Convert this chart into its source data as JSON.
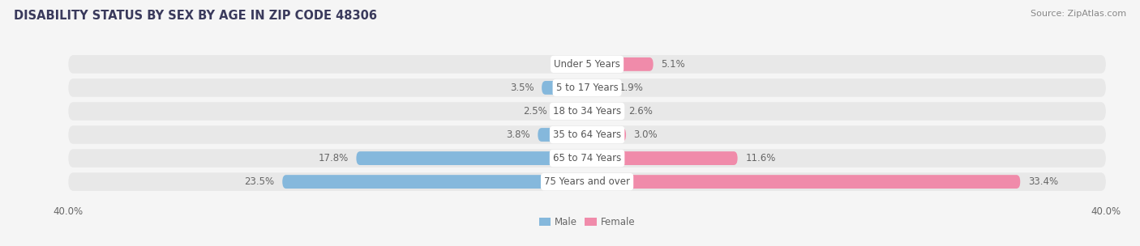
{
  "title": "DISABILITY STATUS BY SEX BY AGE IN ZIP CODE 48306",
  "source": "Source: ZipAtlas.com",
  "categories": [
    "Under 5 Years",
    "5 to 17 Years",
    "18 to 34 Years",
    "35 to 64 Years",
    "65 to 74 Years",
    "75 Years and over"
  ],
  "male_values": [
    0.0,
    3.5,
    2.5,
    3.8,
    17.8,
    23.5
  ],
  "female_values": [
    5.1,
    1.9,
    2.6,
    3.0,
    11.6,
    33.4
  ],
  "male_color": "#85b8dc",
  "female_color": "#f08baa",
  "row_bg_color": "#e8e8e8",
  "chart_bg_color": "#f5f5f5",
  "label_bg_color": "#ffffff",
  "xlim": 40.0,
  "bar_height": 0.58,
  "title_fontsize": 10.5,
  "source_fontsize": 8,
  "label_fontsize": 8.5,
  "category_fontsize": 8.5,
  "tick_fontsize": 8.5,
  "legend_fontsize": 8.5
}
